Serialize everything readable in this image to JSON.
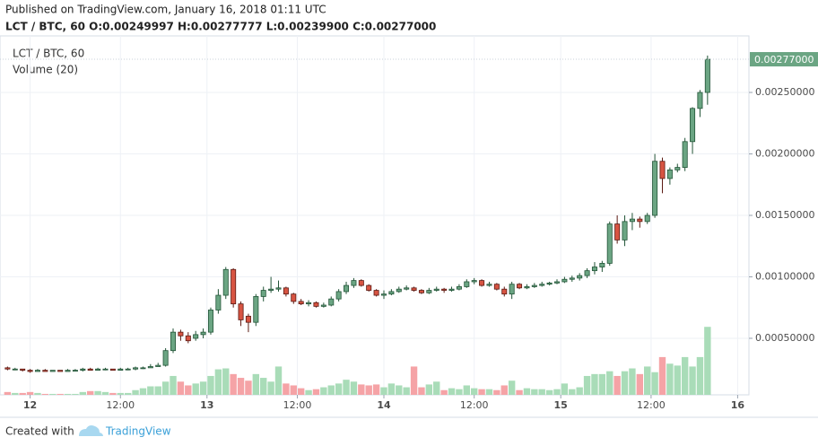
{
  "chart_data": {
    "type": "candlestick",
    "published": "Published on TradingView.com, January 16, 2018 01:11 UTC",
    "ohlc_line": "LCT / BTC, 60  O:0.00249997 H:0.00277777 L:0.00239900 C:0.00277000",
    "title": "LCT / BTC, 60",
    "volume_title": "Volume (20)",
    "footer": "Created with",
    "brand": "TradingView",
    "up_color": "#6ba583",
    "down_color": "#d75442",
    "up_volume_color": "#a9dcb8",
    "down_volume_color": "#f5a3a6",
    "grid": true,
    "open": [
      0.00026,
      0.00025,
      0.00025,
      0.00024,
      0.00023,
      0.00024,
      0.00023,
      0.00024,
      0.00023,
      0.00024,
      0.00024,
      0.00025,
      0.00024,
      0.00025,
      0.00025,
      0.00024,
      0.00025,
      0.00025,
      0.00026,
      0.00026,
      0.00027,
      0.00028,
      0.0004,
      0.00055,
      0.00052,
      0.0005,
      0.00053,
      0.00055,
      0.00073,
      0.00085,
      0.00106,
      0.00078,
      0.00068,
      0.00063,
      0.00084,
      0.00089,
      0.0009,
      0.00091,
      0.00086,
      0.0008,
      0.00078,
      0.00079,
      0.00076,
      0.00077,
      0.00082,
      0.00088,
      0.00093,
      0.00097,
      0.00093,
      0.00089,
      0.00085,
      0.00086,
      0.00088,
      0.0009,
      0.00091,
      0.00089,
      0.00087,
      0.00089,
      0.0009,
      0.00089,
      0.0009,
      0.00092,
      0.00096,
      0.00097,
      0.00093,
      0.00094,
      0.0009,
      0.00086,
      0.00094,
      0.00091,
      0.00092,
      0.00093,
      0.00094,
      0.00095,
      0.00096,
      0.00098,
      0.00099,
      0.00101,
      0.00105,
      0.00108,
      0.00111,
      0.00143,
      0.0013,
      0.00145,
      0.00147,
      0.00145,
      0.0015,
      0.00194,
      0.0018,
      0.00187,
      0.00189,
      0.0021,
      0.00237,
      0.0025
    ],
    "high": [
      0.00027,
      0.00026,
      0.00025,
      0.00025,
      0.00025,
      0.00025,
      0.00024,
      0.00024,
      0.00025,
      0.00025,
      0.00026,
      0.00026,
      0.00026,
      0.00026,
      0.00025,
      0.00026,
      0.00026,
      0.00027,
      0.00027,
      0.00029,
      0.0003,
      0.00042,
      0.00058,
      0.00057,
      0.00055,
      0.00056,
      0.00058,
      0.00075,
      0.0009,
      0.00108,
      0.00107,
      0.0008,
      0.0007,
      0.00086,
      0.00092,
      0.001,
      0.00097,
      0.00092,
      0.00087,
      0.00082,
      0.00081,
      0.0008,
      0.00079,
      0.00084,
      0.0009,
      0.00096,
      0.00099,
      0.00098,
      0.00094,
      0.0009,
      0.00089,
      0.0009,
      0.00092,
      0.00093,
      0.00092,
      0.0009,
      0.00091,
      0.00092,
      0.00091,
      0.00092,
      0.00094,
      0.00098,
      0.00099,
      0.00098,
      0.00096,
      0.00095,
      0.00092,
      0.00096,
      0.00095,
      0.00094,
      0.00095,
      0.00096,
      0.00096,
      0.00098,
      0.001,
      0.00101,
      0.00103,
      0.00107,
      0.00112,
      0.00113,
      0.00145,
      0.0015,
      0.0015,
      0.00152,
      0.00149,
      0.00152,
      0.002,
      0.00197,
      0.00189,
      0.00192,
      0.00213,
      0.00238,
      0.00252,
      0.0028
    ],
    "low": [
      0.00024,
      0.00024,
      0.00023,
      0.00022,
      0.00023,
      0.00023,
      0.00023,
      0.00023,
      0.00023,
      0.00023,
      0.00023,
      0.00024,
      0.00024,
      0.00024,
      0.00024,
      0.00024,
      0.00024,
      0.00024,
      0.00025,
      0.00026,
      0.00027,
      0.00027,
      0.00038,
      0.00048,
      0.00046,
      0.00048,
      0.0005,
      0.00053,
      0.0007,
      0.00082,
      0.00075,
      0.0006,
      0.00055,
      0.0006,
      0.0008,
      0.00087,
      0.00088,
      0.00084,
      0.00078,
      0.00077,
      0.00076,
      0.00075,
      0.00075,
      0.00076,
      0.0008,
      0.00086,
      0.00091,
      0.00092,
      0.00088,
      0.00084,
      0.00082,
      0.00085,
      0.00087,
      0.00089,
      0.00088,
      0.00086,
      0.00086,
      0.00088,
      0.00087,
      0.00088,
      0.00089,
      0.00091,
      0.00094,
      0.00092,
      0.00092,
      0.00089,
      0.00084,
      0.00082,
      0.0009,
      0.0009,
      0.00091,
      0.00092,
      0.00093,
      0.00094,
      0.00095,
      0.00096,
      0.00097,
      0.00099,
      0.00102,
      0.00104,
      0.00109,
      0.00127,
      0.00125,
      0.00138,
      0.0014,
      0.00143,
      0.00148,
      0.00168,
      0.00175,
      0.00185,
      0.00186,
      0.002,
      0.0023,
      0.0024
    ],
    "close": [
      0.00025,
      0.00025,
      0.00024,
      0.00023,
      0.00024,
      0.00023,
      0.00024,
      0.00023,
      0.00024,
      0.00024,
      0.00025,
      0.00024,
      0.00025,
      0.00025,
      0.00024,
      0.00025,
      0.00025,
      0.00026,
      0.00026,
      0.00027,
      0.00028,
      0.0004,
      0.00055,
      0.00052,
      0.00048,
      0.00053,
      0.00055,
      0.00073,
      0.00085,
      0.00106,
      0.00078,
      0.00065,
      0.00063,
      0.00084,
      0.00089,
      0.0009,
      0.00091,
      0.00086,
      0.0008,
      0.00078,
      0.00079,
      0.00076,
      0.00077,
      0.00082,
      0.00088,
      0.00093,
      0.00097,
      0.00093,
      0.00089,
      0.00085,
      0.00086,
      0.00088,
      0.0009,
      0.00091,
      0.00089,
      0.00087,
      0.00089,
      0.0009,
      0.00089,
      0.0009,
      0.00092,
      0.00096,
      0.00097,
      0.00093,
      0.00094,
      0.0009,
      0.00086,
      0.00094,
      0.00091,
      0.00092,
      0.00093,
      0.00094,
      0.00095,
      0.00096,
      0.00098,
      0.00099,
      0.00101,
      0.00105,
      0.00108,
      0.00111,
      0.00143,
      0.0013,
      0.00145,
      0.00147,
      0.00145,
      0.0015,
      0.00194,
      0.0018,
      0.00187,
      0.00189,
      0.0021,
      0.00237,
      0.0025,
      0.00277
    ],
    "volume": [
      3,
      2,
      2,
      3,
      2,
      1,
      1,
      1,
      1,
      1,
      3,
      4,
      4,
      3,
      2,
      2,
      2,
      5,
      7,
      9,
      9,
      14,
      20,
      14,
      10,
      12,
      14,
      20,
      27,
      28,
      22,
      18,
      15,
      22,
      18,
      14,
      30,
      12,
      10,
      7,
      5,
      6,
      8,
      10,
      12,
      16,
      14,
      11,
      10,
      11,
      8,
      12,
      10,
      8,
      30,
      8,
      11,
      14,
      5,
      7,
      6,
      10,
      7,
      6,
      6,
      5,
      10,
      15,
      5,
      7,
      6,
      6,
      5,
      6,
      12,
      6,
      8,
      20,
      22,
      22,
      25,
      20,
      25,
      28,
      22,
      30,
      24,
      40,
      33,
      31,
      40,
      30,
      40,
      72
    ],
    "last_close_label": "0.00277000",
    "ylim": [
      4e-05,
      0.00296
    ],
    "yticks": [
      {
        "value": 0.0005,
        "label": "0.00050000"
      },
      {
        "value": 0.001,
        "label": "0.00100000"
      },
      {
        "value": 0.0015,
        "label": "0.00150000"
      },
      {
        "value": 0.002,
        "label": "0.00200000"
      },
      {
        "value": 0.0025,
        "label": "0.00250000"
      }
    ],
    "volume_ylim": [
      0,
      95
    ],
    "xlim": [
      -1,
      98.5
    ],
    "xticks": [
      {
        "value": 3,
        "label": "12"
      },
      {
        "value": 15,
        "label": "12:00"
      },
      {
        "value": 26.5,
        "label": "13"
      },
      {
        "value": 38.5,
        "label": "12:00"
      },
      {
        "value": 50,
        "label": "14"
      },
      {
        "value": 62,
        "label": "12:00"
      },
      {
        "value": 73.5,
        "label": "15"
      },
      {
        "value": 85.5,
        "label": "12:00"
      },
      {
        "value": 97,
        "label": "16"
      }
    ]
  }
}
